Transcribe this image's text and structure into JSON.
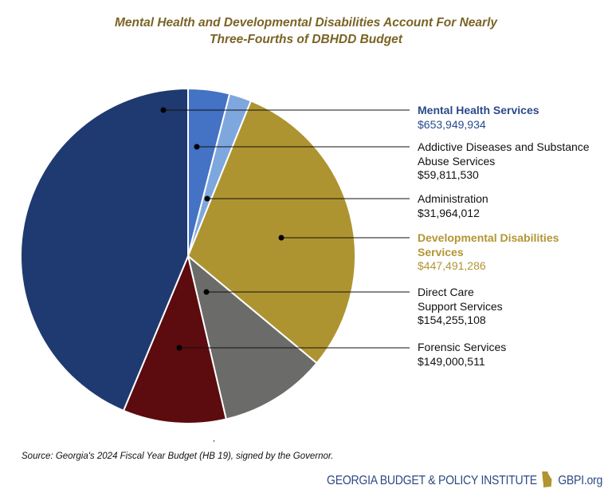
{
  "chart_data": {
    "type": "pie",
    "title": "Mental Health and Developmental Disabilities Account For Nearly Three-Fourths of DBHDD Budget",
    "title_lines": [
      "Mental Health and Developmental Disabilities Account For Nearly",
      "Three-Fourths of DBHDD Budget"
    ],
    "start": "12 o'clock, clockwise",
    "slices": [
      {
        "name": "Addictive Diseases and Substance\nAbuse Services",
        "value": 59811530,
        "label": "$59,811,530",
        "color": "#4472c4"
      },
      {
        "name": "Administration",
        "value": 31964012,
        "label": "$31,964,012",
        "color": "#7ea7de"
      },
      {
        "name": "Developmental Disabilities\nServices",
        "value": 447491286,
        "label": "$447,491,286",
        "color": "#ae9431"
      },
      {
        "name": "Direct Care\nSupport Services",
        "value": 154255108,
        "label": "$154,255,108",
        "color": "#6b6c6a"
      },
      {
        "name": "Forensic Services",
        "value": 149000511,
        "label": "$149,000,511",
        "color": "#5c0b0f"
      },
      {
        "name": "Mental Health Services",
        "value": 653949934,
        "label": "$653,949,934",
        "color": "#1f3a70"
      }
    ],
    "legend": "right, leader lines"
  },
  "source": "Source: Georgia's 2024 Fiscal Year Budget (HB 19), signed by the Governor.",
  "stray_mark": ",",
  "footer": {
    "org": "GEORGIA BUDGET & POLICY INSTITUTE",
    "url": "GBPI.org",
    "logo_color": "#b09530"
  }
}
